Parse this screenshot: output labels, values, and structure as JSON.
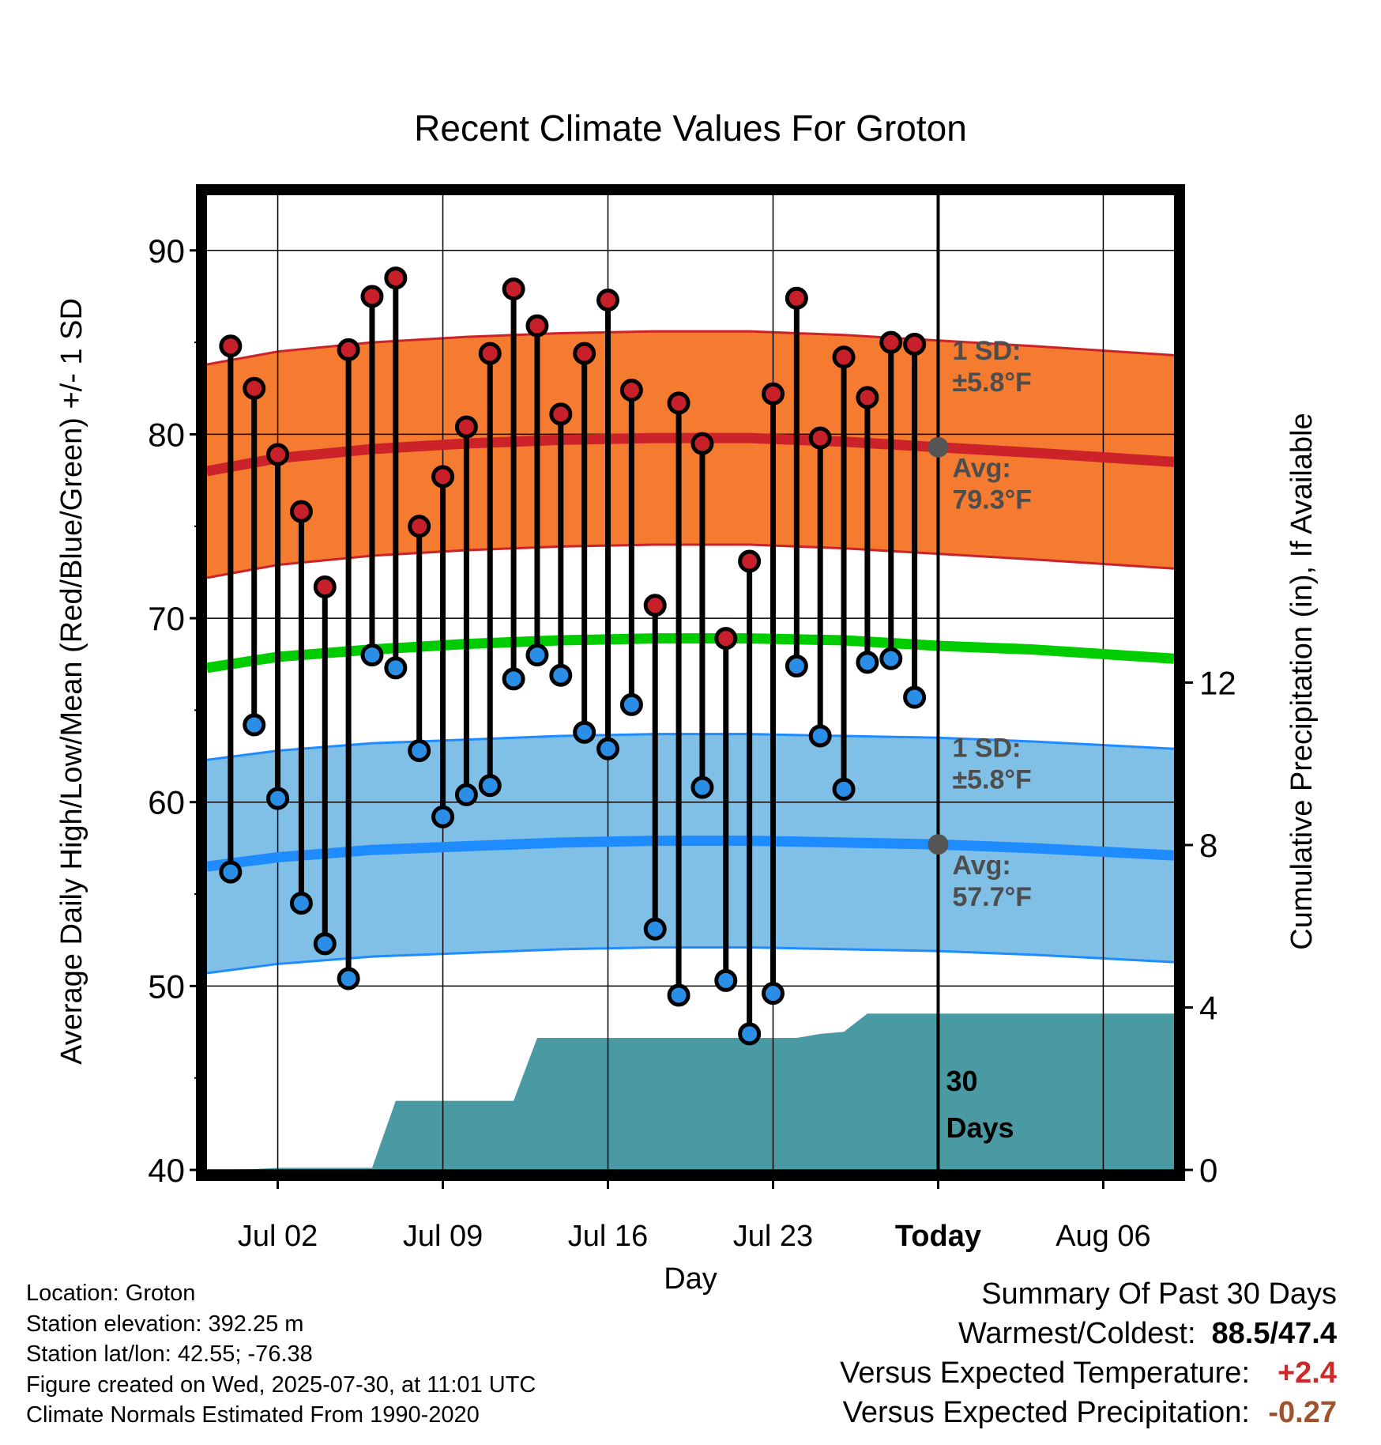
{
  "chart_data": {
    "type": "line",
    "title": "Recent Climate Values For Groton",
    "xlabel": "Day",
    "ylabel": "Average Daily High/Low/Mean (Red/Blue/Green) +/- 1 SD",
    "ylabel_right": "Cumulative Precipitation (in), If Available",
    "ylim": [
      40,
      93
    ],
    "ylim_right": [
      0,
      24
    ],
    "yticks_left": [
      "40",
      "50",
      "60",
      "70",
      "80",
      "90"
    ],
    "yticks_right": [
      "0",
      "4",
      "8",
      "12"
    ],
    "xlim": [
      "2025-06-29",
      "2025-08-09"
    ],
    "xticks": [
      {
        "date": "2025-07-02",
        "label": "Jul 02"
      },
      {
        "date": "2025-07-09",
        "label": "Jul 09"
      },
      {
        "date": "2025-07-16",
        "label": "Jul 16"
      },
      {
        "date": "2025-07-23",
        "label": "Jul 23"
      },
      {
        "date": "2025-07-30",
        "label": "Today"
      },
      {
        "date": "2025-08-06",
        "label": "Aug 06"
      }
    ],
    "grid": true,
    "today": "2025-07-30",
    "today_label": "30 Days",
    "normals": {
      "dates": [
        "2025-06-29",
        "2025-07-02",
        "2025-07-06",
        "2025-07-10",
        "2025-07-14",
        "2025-07-18",
        "2025-07-22",
        "2025-07-26",
        "2025-07-30",
        "2025-08-03",
        "2025-08-09"
      ],
      "high_avg": [
        78.0,
        78.7,
        79.2,
        79.5,
        79.7,
        79.8,
        79.8,
        79.6,
        79.3,
        79.0,
        78.5
      ],
      "low_avg": [
        56.5,
        57.0,
        57.4,
        57.6,
        57.8,
        57.9,
        57.9,
        57.8,
        57.7,
        57.5,
        57.1
      ],
      "mean_avg": [
        67.3,
        67.9,
        68.3,
        68.6,
        68.8,
        68.9,
        68.9,
        68.8,
        68.5,
        68.3,
        67.8
      ],
      "high_sd": 5.8,
      "low_sd": 5.8
    },
    "annotations": {
      "high": {
        "sd_label": "1 SD:",
        "sd_value": "±5.8°F",
        "avg_label": "Avg:",
        "avg_value": "79.3°F",
        "avg_at_today": 79.3
      },
      "low": {
        "sd_label": "1 SD:",
        "sd_value": "±5.8°F",
        "avg_label": "Avg:",
        "avg_value": "57.7°F",
        "avg_at_today": 57.7
      }
    },
    "series": [
      {
        "name": "High",
        "color": "#c8202a",
        "dates": [
          "2025-06-30",
          "2025-07-01",
          "2025-07-02",
          "2025-07-03",
          "2025-07-04",
          "2025-07-05",
          "2025-07-06",
          "2025-07-07",
          "2025-07-08",
          "2025-07-09",
          "2025-07-10",
          "2025-07-11",
          "2025-07-12",
          "2025-07-13",
          "2025-07-14",
          "2025-07-15",
          "2025-07-16",
          "2025-07-17",
          "2025-07-18",
          "2025-07-19",
          "2025-07-20",
          "2025-07-21",
          "2025-07-22",
          "2025-07-23",
          "2025-07-24",
          "2025-07-25",
          "2025-07-26",
          "2025-07-27",
          "2025-07-28",
          "2025-07-29"
        ],
        "values": [
          84.8,
          82.5,
          78.9,
          75.8,
          71.7,
          84.6,
          87.5,
          88.5,
          75.0,
          77.7,
          80.4,
          84.4,
          87.9,
          85.9,
          81.1,
          84.4,
          87.3,
          82.4,
          70.7,
          81.7,
          79.5,
          68.9,
          73.1,
          82.2,
          87.4,
          79.8,
          84.2,
          82.0,
          85.0,
          84.9
        ]
      },
      {
        "name": "Low",
        "color": "#2a8ee6",
        "dates": [
          "2025-06-30",
          "2025-07-01",
          "2025-07-02",
          "2025-07-03",
          "2025-07-04",
          "2025-07-05",
          "2025-07-06",
          "2025-07-07",
          "2025-07-08",
          "2025-07-09",
          "2025-07-10",
          "2025-07-11",
          "2025-07-12",
          "2025-07-13",
          "2025-07-14",
          "2025-07-15",
          "2025-07-16",
          "2025-07-17",
          "2025-07-18",
          "2025-07-19",
          "2025-07-20",
          "2025-07-21",
          "2025-07-22",
          "2025-07-23",
          "2025-07-24",
          "2025-07-25",
          "2025-07-26",
          "2025-07-27",
          "2025-07-28",
          "2025-07-29"
        ],
        "values": [
          56.2,
          64.2,
          60.2,
          54.5,
          52.3,
          50.4,
          68.0,
          67.3,
          62.8,
          59.2,
          60.4,
          60.9,
          66.7,
          68.0,
          66.9,
          63.8,
          62.9,
          65.3,
          53.1,
          49.5,
          60.8,
          50.3,
          47.4,
          49.6,
          67.4,
          63.6,
          60.7,
          67.6,
          67.8,
          65.7
        ]
      },
      {
        "name": "Cumulative Precipitation",
        "color": "#4a9aa4",
        "dates": [
          "2025-06-29",
          "2025-07-01",
          "2025-07-02",
          "2025-07-05",
          "2025-07-06",
          "2025-07-07",
          "2025-07-11",
          "2025-07-12",
          "2025-07-13",
          "2025-07-23",
          "2025-07-24",
          "2025-07-25",
          "2025-07-26",
          "2025-07-27",
          "2025-08-09"
        ],
        "values": [
          0.0,
          0.02,
          0.05,
          0.05,
          0.05,
          1.7,
          1.7,
          1.7,
          3.25,
          3.25,
          3.25,
          3.35,
          3.4,
          3.85,
          3.85
        ]
      }
    ]
  },
  "meta": {
    "location": "Location: Groton",
    "elevation": "Station elevation: 392.25 m",
    "latlon": "Station lat/lon: 42.55; -76.38",
    "created": "Figure created on Wed, 2025-07-30, at 11:01 UTC",
    "normals": "Climate Normals Estimated From 1990-2020"
  },
  "summary": {
    "title": "Summary Of Past 30 Days",
    "warm_cold_label": "Warmest/Coldest:",
    "warm_cold_value": "88.5/47.4",
    "temp_label": "Versus Expected Temperature:",
    "temp_value": "+2.4",
    "precip_label": "Versus Expected Precipitation:",
    "precip_value": "-0.27",
    "colors": {
      "warm_cold": "#000000",
      "temp": "#d02828",
      "precip": "#a0522d"
    }
  },
  "colors": {
    "high_band": "#f47b30",
    "high_line": "#cc2229",
    "low_band": "#80bfe6",
    "low_line": "#1e8cff",
    "mean_line": "#00cc00",
    "precip_fill": "#4a9aa4",
    "avg_dot": "#555555",
    "annotation_text": "#4d4d4d"
  }
}
